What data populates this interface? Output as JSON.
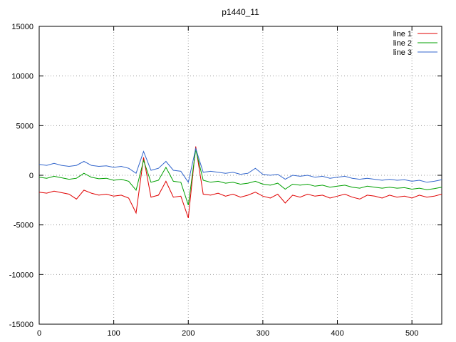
{
  "title": "p1440_11",
  "chart_data": {
    "type": "line",
    "title": "p1440_11",
    "xlabel": "",
    "ylabel": "",
    "xlim": [
      0,
      540
    ],
    "ylim": [
      -15000,
      15000
    ],
    "xticks": [
      0,
      100,
      200,
      300,
      400,
      500
    ],
    "yticks": [
      -15000,
      -10000,
      -5000,
      0,
      5000,
      10000,
      15000
    ],
    "grid": true,
    "legend_position": "top-right",
    "x": [
      0,
      10,
      20,
      30,
      40,
      50,
      60,
      70,
      80,
      90,
      100,
      110,
      120,
      130,
      140,
      150,
      160,
      170,
      180,
      190,
      200,
      210,
      220,
      230,
      240,
      250,
      260,
      270,
      280,
      290,
      300,
      310,
      320,
      330,
      340,
      350,
      360,
      370,
      380,
      390,
      400,
      410,
      420,
      430,
      440,
      450,
      460,
      470,
      480,
      490,
      500,
      510,
      520,
      530,
      540
    ],
    "series": [
      {
        "name": "line 1",
        "color": "#e00000",
        "values": [
          -1700,
          -1800,
          -1600,
          -1750,
          -1900,
          -2400,
          -1500,
          -1800,
          -2000,
          -1900,
          -2100,
          -2000,
          -2300,
          -3800,
          1800,
          -2200,
          -2000,
          -600,
          -2200,
          -2100,
          -4300,
          2900,
          -1900,
          -2000,
          -1800,
          -2100,
          -1900,
          -2200,
          -2000,
          -1700,
          -2100,
          -2300,
          -1900,
          -2800,
          -2000,
          -2200,
          -1900,
          -2100,
          -2000,
          -2300,
          -2100,
          -1900,
          -2200,
          -2400,
          -2000,
          -2100,
          -2300,
          -2000,
          -2200,
          -2100,
          -2300,
          -2000,
          -2200,
          -2100,
          -1900
        ]
      },
      {
        "name": "line 2",
        "color": "#00a000",
        "values": [
          -200,
          -300,
          -100,
          -250,
          -400,
          -300,
          200,
          -200,
          -350,
          -300,
          -500,
          -400,
          -600,
          -1500,
          1500,
          -700,
          -500,
          800,
          -600,
          -700,
          -3000,
          2600,
          -500,
          -700,
          -600,
          -800,
          -700,
          -900,
          -800,
          -600,
          -900,
          -1000,
          -800,
          -1400,
          -900,
          -1000,
          -900,
          -1100,
          -1000,
          -1200,
          -1100,
          -1000,
          -1200,
          -1300,
          -1100,
          -1200,
          -1300,
          -1200,
          -1300,
          -1250,
          -1400,
          -1300,
          -1450,
          -1350,
          -1200
        ]
      },
      {
        "name": "line 3",
        "color": "#3366cc",
        "values": [
          1100,
          1000,
          1200,
          1000,
          900,
          1000,
          1400,
          1000,
          900,
          950,
          800,
          900,
          700,
          200,
          2400,
          500,
          700,
          1400,
          500,
          400,
          -700,
          2700,
          300,
          400,
          300,
          200,
          300,
          100,
          200,
          700,
          100,
          0,
          100,
          -400,
          0,
          -100,
          0,
          -200,
          -100,
          -300,
          -200,
          -100,
          -300,
          -400,
          -300,
          -400,
          -500,
          -400,
          -500,
          -450,
          -600,
          -500,
          -700,
          -600,
          -450
        ]
      }
    ]
  }
}
